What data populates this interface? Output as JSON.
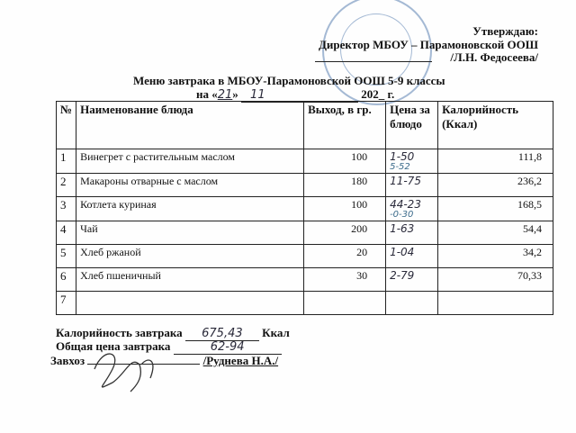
{
  "approval": {
    "title": "Утверждаю:",
    "position": "Директор МБОУ – Парамоновской ООШ",
    "name": "/Л.Н. Федосеева/"
  },
  "heading": {
    "title": "Меню завтрака в МБОУ-Парамоновской ООШ 5-9 классы",
    "date_prefix": "на «",
    "day": "21",
    "date_mid": "»",
    "month": "11",
    "year": "202",
    "year_suffix": "г."
  },
  "table": {
    "headers": [
      "№",
      "Наименование блюда",
      "Выход, в гр.",
      "Цена за блюдо",
      "Калорийность (Ккал)"
    ],
    "rows": [
      {
        "n": "1",
        "name": "Винегрет с растительным маслом",
        "yield": "100",
        "price": "1-50",
        "price_note": "5-52",
        "cal": "111,8"
      },
      {
        "n": "2",
        "name": "Макароны отварные с маслом",
        "yield": "180",
        "price": "11-75",
        "price_note": "",
        "cal": "236,2"
      },
      {
        "n": "3",
        "name": "Котлета куриная",
        "yield": "100",
        "price": "44-23",
        "price_note": "-0-30",
        "cal": "168,5"
      },
      {
        "n": "4",
        "name": "Чай",
        "yield": "200",
        "price": "1-63",
        "price_note": "",
        "cal": "54,4"
      },
      {
        "n": "5",
        "name": "Хлеб ржаной",
        "yield": "20",
        "price": "1-04",
        "price_note": "",
        "cal": "34,2"
      },
      {
        "n": "6",
        "name": "Хлеб пшеничный",
        "yield": "30",
        "price": "2-79",
        "price_note": "",
        "cal": "70,33"
      },
      {
        "n": "7",
        "name": "",
        "yield": "",
        "price": "",
        "price_note": "",
        "cal": ""
      }
    ]
  },
  "footer": {
    "cal_label": "Калорийность завтрака",
    "cal_value": "675,43",
    "cal_unit": "Ккал",
    "price_label": "Общая цена завтрака",
    "price_value": "62-94",
    "manager_label": "Завхоз",
    "manager_name": "/Руднева Н.А./"
  }
}
